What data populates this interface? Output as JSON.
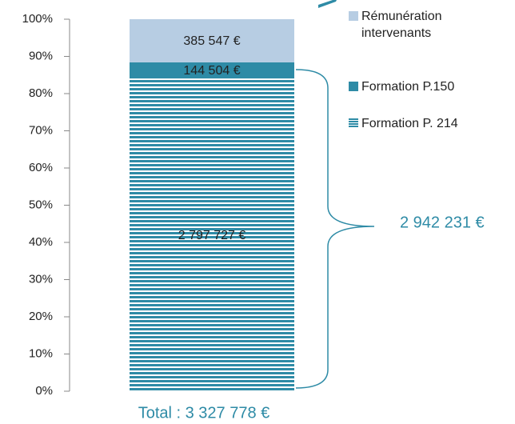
{
  "chart_data": {
    "type": "bar",
    "stacking": "percent",
    "categories": [
      null
    ],
    "series": [
      {
        "name": "Formation P. 214",
        "color": "#2e8ba6",
        "pattern": "stripes",
        "values": [
          2797727
        ],
        "value_labels": [
          "2 797 727 €"
        ]
      },
      {
        "name": "Formation P.150",
        "color": "#2e8ba6",
        "values": [
          144504
        ],
        "value_labels": [
          "144 504 €"
        ]
      },
      {
        "name": "Rémunération intervenants",
        "color": "#b7cde3",
        "values": [
          385547
        ],
        "value_labels": [
          "385 547 €"
        ]
      }
    ],
    "ylim": [
      0,
      100
    ],
    "yticks": [
      {
        "value": 0,
        "label": "0%"
      },
      {
        "value": 10,
        "label": "10%"
      },
      {
        "value": 20,
        "label": "20%"
      },
      {
        "value": 30,
        "label": "30%"
      },
      {
        "value": 40,
        "label": "40%"
      },
      {
        "value": 50,
        "label": "50%"
      },
      {
        "value": 60,
        "label": "60%"
      },
      {
        "value": 70,
        "label": "70%"
      },
      {
        "value": 80,
        "label": "80%"
      },
      {
        "value": 90,
        "label": "90%"
      },
      {
        "value": 100,
        "label": "100%"
      }
    ],
    "annotations": {
      "bracket": "2 942 231 €",
      "total": "Total : 3 327 778 €"
    },
    "legend": "right"
  }
}
